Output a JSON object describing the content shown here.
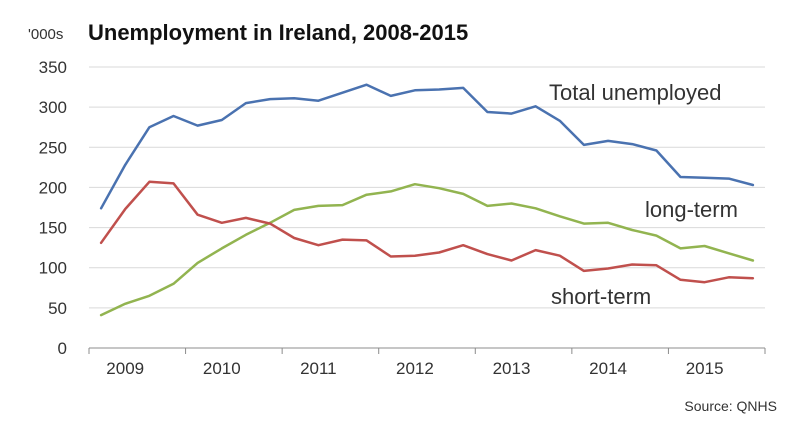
{
  "chart_data": {
    "type": "line",
    "title": "Unemployment in Ireland, 2008-2015",
    "unit_label": "'000s",
    "source": "Source: QNHS",
    "ylim": [
      0,
      350
    ],
    "yticks": [
      0,
      50,
      100,
      150,
      200,
      250,
      300,
      350
    ],
    "xlim": [
      2008.625,
      2015.625
    ],
    "xticks": [
      2009,
      2010,
      2011,
      2012,
      2013,
      2014,
      2015
    ],
    "grid": true,
    "legend": "inline labels",
    "x": [
      2008.75,
      2009.0,
      2009.25,
      2009.5,
      2009.75,
      2010.0,
      2010.25,
      2010.5,
      2010.75,
      2011.0,
      2011.25,
      2011.5,
      2011.75,
      2012.0,
      2012.25,
      2012.5,
      2012.75,
      2013.0,
      2013.25,
      2013.5,
      2013.75,
      2014.0,
      2014.25,
      2014.5,
      2014.75,
      2015.0,
      2015.25,
      2015.5
    ],
    "series": [
      {
        "name": "Total unemployed",
        "color": "#4a72b0",
        "values": [
          174,
          228,
          275,
          289,
          277,
          284,
          305,
          310,
          311,
          308,
          318,
          328,
          314,
          321,
          322,
          324,
          294,
          292,
          301,
          283,
          253,
          258,
          254,
          246,
          213,
          212,
          211,
          203
        ]
      },
      {
        "name": "long-term",
        "color": "#92b450",
        "values": [
          41,
          55,
          65,
          80,
          106,
          124,
          141,
          156,
          172,
          177,
          178,
          191,
          195,
          204,
          199,
          192,
          177,
          180,
          174,
          164,
          155,
          156,
          147,
          140,
          124,
          127,
          118,
          109
        ]
      },
      {
        "name": "short-term",
        "color": "#c0504d",
        "values": [
          131,
          173,
          207,
          205,
          166,
          156,
          162,
          155,
          137,
          128,
          135,
          134,
          114,
          115,
          119,
          128,
          117,
          109,
          122,
          115,
          96,
          99,
          104,
          103,
          85,
          82,
          88,
          87
        ]
      }
    ]
  }
}
